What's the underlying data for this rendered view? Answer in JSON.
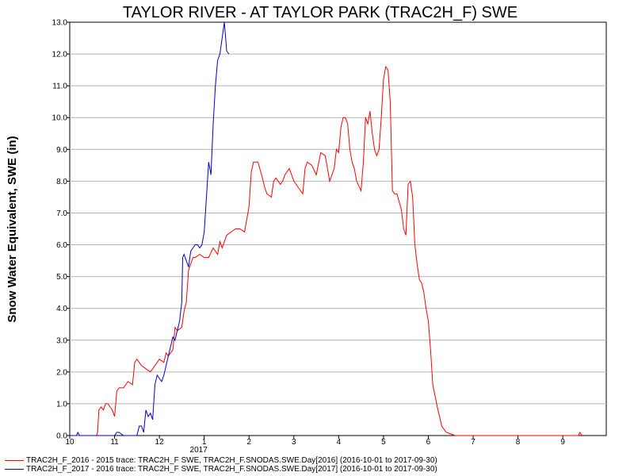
{
  "chart_data": {
    "type": "line",
    "title": "TAYLOR RIVER - AT TAYLOR PARK (TRAC2H_F) SWE",
    "ylabel": "Snow Water Equivalent, SWE (in)",
    "xlabel": "",
    "ylim": [
      0,
      13
    ],
    "yticks": [
      "0.0",
      "1.0",
      "2.0",
      "3.0",
      "4.0",
      "5.0",
      "6.0",
      "7.0",
      "8.0",
      "9.0",
      "10.0",
      "11.0",
      "12.0",
      "13.0"
    ],
    "xlim": [
      10,
      10.97
    ],
    "xticks": [
      {
        "value": 10,
        "label": "10"
      },
      {
        "value": 11,
        "label": "11"
      },
      {
        "value": 12,
        "label": "12"
      },
      {
        "value": 13,
        "label": "1"
      },
      {
        "value": 14,
        "label": "2"
      },
      {
        "value": 15,
        "label": "3"
      },
      {
        "value": 16,
        "label": "4"
      },
      {
        "value": 17,
        "label": "5"
      },
      {
        "value": 18,
        "label": "6"
      },
      {
        "value": 19,
        "label": "7"
      },
      {
        "value": 20,
        "label": "8"
      },
      {
        "value": 21,
        "label": "9"
      }
    ],
    "year_label": {
      "value": 13,
      "label": "2017"
    },
    "grid": "horizontal",
    "series": [
      {
        "name": "TRAC2H_F_2016 - 2015 trace: TRAC2H_F SWE, TRAC2H_F.SNODAS.SWE.Day[2016] (2016-10-01 to 2017-09-30)",
        "color": "#ff0000",
        "points": [
          [
            10.0,
            0
          ],
          [
            10.6,
            0
          ],
          [
            10.62,
            0.1
          ],
          [
            10.65,
            0.8
          ],
          [
            10.7,
            0.9
          ],
          [
            10.75,
            0.8
          ],
          [
            10.8,
            1.0
          ],
          [
            10.85,
            1.0
          ],
          [
            10.9,
            0.9
          ],
          [
            10.95,
            0.8
          ],
          [
            11.0,
            0.6
          ],
          [
            11.05,
            1.4
          ],
          [
            11.1,
            1.5
          ],
          [
            11.2,
            1.5
          ],
          [
            11.3,
            1.7
          ],
          [
            11.4,
            1.6
          ],
          [
            11.45,
            2.3
          ],
          [
            11.5,
            2.4
          ],
          [
            11.55,
            2.3
          ],
          [
            11.6,
            2.2
          ],
          [
            11.7,
            2.1
          ],
          [
            11.8,
            2.0
          ],
          [
            11.9,
            2.2
          ],
          [
            12.0,
            2.4
          ],
          [
            12.1,
            2.3
          ],
          [
            12.15,
            2.6
          ],
          [
            12.2,
            2.5
          ],
          [
            12.3,
            2.7
          ],
          [
            12.35,
            3.4
          ],
          [
            12.4,
            3.3
          ],
          [
            12.5,
            3.4
          ],
          [
            12.55,
            3.9
          ],
          [
            12.6,
            4.2
          ],
          [
            12.65,
            5.2
          ],
          [
            12.7,
            5.4
          ],
          [
            12.75,
            5.6
          ],
          [
            12.8,
            5.6
          ],
          [
            12.9,
            5.7
          ],
          [
            13.0,
            5.6
          ],
          [
            13.1,
            5.6
          ],
          [
            13.2,
            5.9
          ],
          [
            13.3,
            5.7
          ],
          [
            13.35,
            6.1
          ],
          [
            13.4,
            5.9
          ],
          [
            13.5,
            6.3
          ],
          [
            13.6,
            6.4
          ],
          [
            13.7,
            6.5
          ],
          [
            13.8,
            6.5
          ],
          [
            13.9,
            6.4
          ],
          [
            14.0,
            7.2
          ],
          [
            14.05,
            8.3
          ],
          [
            14.1,
            8.6
          ],
          [
            14.2,
            8.6
          ],
          [
            14.3,
            8.1
          ],
          [
            14.35,
            7.8
          ],
          [
            14.4,
            7.6
          ],
          [
            14.5,
            7.5
          ],
          [
            14.55,
            8.0
          ],
          [
            14.6,
            8.1
          ],
          [
            14.7,
            7.9
          ],
          [
            14.75,
            8.0
          ],
          [
            14.8,
            8.2
          ],
          [
            14.9,
            8.4
          ],
          [
            15.0,
            8.0
          ],
          [
            15.1,
            7.8
          ],
          [
            15.2,
            7.6
          ],
          [
            15.25,
            8.4
          ],
          [
            15.3,
            8.6
          ],
          [
            15.4,
            8.5
          ],
          [
            15.5,
            8.2
          ],
          [
            15.6,
            8.9
          ],
          [
            15.7,
            8.8
          ],
          [
            15.8,
            8.0
          ],
          [
            15.9,
            8.4
          ],
          [
            15.95,
            9.0
          ],
          [
            16.0,
            8.9
          ],
          [
            16.05,
            9.7
          ],
          [
            16.1,
            10.0
          ],
          [
            16.15,
            10.0
          ],
          [
            16.2,
            9.8
          ],
          [
            16.25,
            9.0
          ],
          [
            16.3,
            8.6
          ],
          [
            16.35,
            8.4
          ],
          [
            16.4,
            8.0
          ],
          [
            16.5,
            7.7
          ],
          [
            16.55,
            8.6
          ],
          [
            16.6,
            10.0
          ],
          [
            16.65,
            9.8
          ],
          [
            16.7,
            10.2
          ],
          [
            16.75,
            9.5
          ],
          [
            16.8,
            9.0
          ],
          [
            16.85,
            8.8
          ],
          [
            16.9,
            9.0
          ],
          [
            16.95,
            10.0
          ],
          [
            17.0,
            11.2
          ],
          [
            17.05,
            11.6
          ],
          [
            17.1,
            11.5
          ],
          [
            17.15,
            10.5
          ],
          [
            17.2,
            7.7
          ],
          [
            17.25,
            7.6
          ],
          [
            17.3,
            7.6
          ],
          [
            17.4,
            7.1
          ],
          [
            17.45,
            6.5
          ],
          [
            17.5,
            6.3
          ],
          [
            17.55,
            7.9
          ],
          [
            17.6,
            8.0
          ],
          [
            17.65,
            7.5
          ],
          [
            17.7,
            6.0
          ],
          [
            17.75,
            5.4
          ],
          [
            17.8,
            4.9
          ],
          [
            17.85,
            4.8
          ],
          [
            17.9,
            4.5
          ],
          [
            17.95,
            4.0
          ],
          [
            18.0,
            3.6
          ],
          [
            18.05,
            2.7
          ],
          [
            18.1,
            1.6
          ],
          [
            18.2,
            0.9
          ],
          [
            18.3,
            0.3
          ],
          [
            18.4,
            0.1
          ],
          [
            18.5,
            0.05
          ],
          [
            18.6,
            0
          ],
          [
            19.0,
            0
          ],
          [
            20.0,
            0
          ],
          [
            21.0,
            0
          ],
          [
            21.35,
            0
          ],
          [
            21.38,
            0.1
          ],
          [
            21.43,
            0
          ]
        ]
      },
      {
        "name": "TRAC2H_F_2017 - 2016 trace: TRAC2H_F SWE, TRAC2H_F.SNODAS.SWE.Day[2017] (2016-10-01 to 2017-09-30)",
        "color": "#0000cc",
        "points": [
          [
            10.0,
            0
          ],
          [
            10.15,
            0
          ],
          [
            10.18,
            0.1
          ],
          [
            10.22,
            0
          ],
          [
            11.0,
            0
          ],
          [
            11.05,
            0.1
          ],
          [
            11.1,
            0.1
          ],
          [
            11.2,
            0
          ],
          [
            11.5,
            0
          ],
          [
            11.55,
            0.3
          ],
          [
            11.6,
            0.3
          ],
          [
            11.65,
            0.1
          ],
          [
            11.7,
            0.8
          ],
          [
            11.75,
            0.6
          ],
          [
            11.8,
            0.7
          ],
          [
            11.85,
            0.5
          ],
          [
            11.9,
            1.6
          ],
          [
            11.95,
            1.9
          ],
          [
            12.0,
            1.8
          ],
          [
            12.05,
            1.7
          ],
          [
            12.1,
            1.9
          ],
          [
            12.15,
            2.2
          ],
          [
            12.2,
            2.5
          ],
          [
            12.25,
            2.8
          ],
          [
            12.3,
            3.1
          ],
          [
            12.35,
            3.0
          ],
          [
            12.4,
            3.3
          ],
          [
            12.45,
            3.6
          ],
          [
            12.5,
            4.2
          ],
          [
            12.52,
            5.6
          ],
          [
            12.55,
            5.7
          ],
          [
            12.6,
            5.5
          ],
          [
            12.65,
            5.3
          ],
          [
            12.7,
            5.8
          ],
          [
            12.75,
            5.9
          ],
          [
            12.8,
            6.0
          ],
          [
            12.85,
            6.0
          ],
          [
            12.9,
            5.9
          ],
          [
            12.95,
            6.0
          ],
          [
            13.0,
            6.4
          ],
          [
            13.05,
            7.5
          ],
          [
            13.1,
            8.6
          ],
          [
            13.15,
            8.2
          ],
          [
            13.2,
            9.8
          ],
          [
            13.25,
            11.0
          ],
          [
            13.3,
            11.8
          ],
          [
            13.35,
            12.0
          ],
          [
            13.4,
            12.5
          ],
          [
            13.45,
            13.0
          ],
          [
            13.5,
            12.1
          ],
          [
            13.55,
            12.0
          ]
        ]
      }
    ]
  }
}
